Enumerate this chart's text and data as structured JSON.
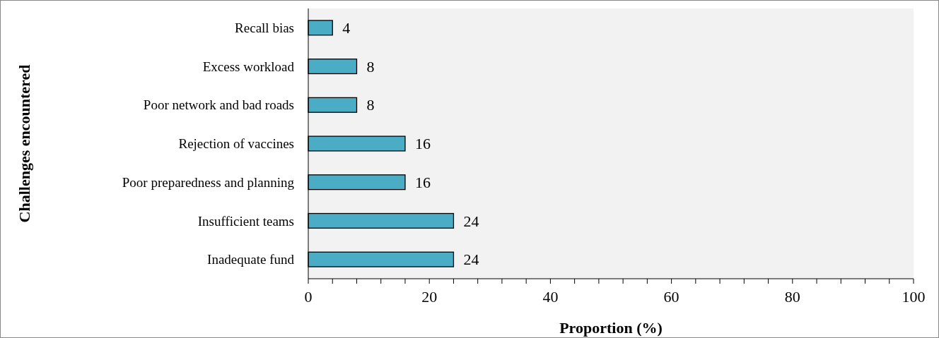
{
  "chart_data": {
    "type": "bar",
    "orientation": "horizontal",
    "xlabel": "Proportion (%)",
    "annotations": [
      "Challenges encountered"
    ],
    "categories": [
      "Recall bias",
      "Excess workload",
      "Poor network and bad roads",
      "Rejection of vaccines",
      "Poor preparedness and planning",
      "Insufficient teams",
      "Inadequate fund"
    ],
    "values": [
      4,
      8,
      8,
      16,
      16,
      24,
      24
    ],
    "color": "#4bacc6",
    "data_labels": true,
    "grid": false,
    "xlim": [
      0,
      100
    ],
    "xticks": [
      0,
      {
        "value": 4,
        "label": null
      },
      {
        "value": 8,
        "label": null
      },
      {
        "value": 12,
        "label": null
      },
      {
        "value": 16,
        "label": null
      },
      20,
      {
        "value": 24,
        "label": null
      },
      {
        "value": 28,
        "label": null
      },
      {
        "value": 32,
        "label": null
      },
      {
        "value": 36,
        "label": null
      },
      40,
      {
        "value": 44,
        "label": null
      },
      {
        "value": 48,
        "label": null
      },
      {
        "value": 52,
        "label": null
      },
      {
        "value": 56,
        "label": null
      },
      60,
      {
        "value": 64,
        "label": null
      },
      {
        "value": 68,
        "label": null
      },
      {
        "value": 72,
        "label": null
      },
      {
        "value": 76,
        "label": null
      },
      80,
      {
        "value": 84,
        "label": null
      },
      {
        "value": 88,
        "label": null
      },
      {
        "value": 92,
        "label": null
      },
      {
        "value": 96,
        "label": null
      },
      100
    ]
  }
}
